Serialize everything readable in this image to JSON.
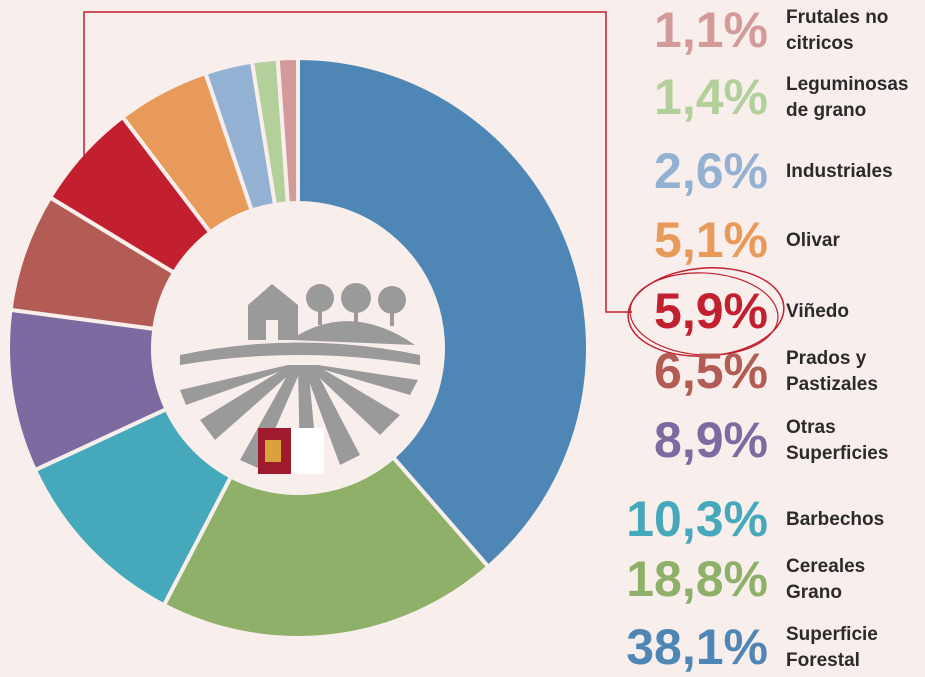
{
  "chart_data": {
    "type": "donut",
    "categories": [
      "Frutales no citricos",
      "Leguminosas de grano",
      "Industriales",
      "Olivar",
      "Viñedo",
      "Prados y Pastizales",
      "Otras Superficies",
      "Barbechos",
      "Cereales Grano",
      "Superficie Forestal"
    ],
    "values": [
      1.1,
      1.4,
      2.6,
      5.1,
      5.9,
      6.5,
      8.9,
      10.3,
      18.8,
      38.1
    ],
    "value_labels": [
      "1,1%",
      "1,4%",
      "2,6%",
      "5,1%",
      "5,9%",
      "6,5%",
      "8,9%",
      "10,3%",
      "18,8%",
      "38,1%"
    ],
    "colors": [
      "#d49a9a",
      "#b3d09b",
      "#93b1d3",
      "#e89a5a",
      "#c21f2f",
      "#b35c56",
      "#7d6aa0",
      "#45a8bb",
      "#8fb068",
      "#4e87b5"
    ]
  }
}
